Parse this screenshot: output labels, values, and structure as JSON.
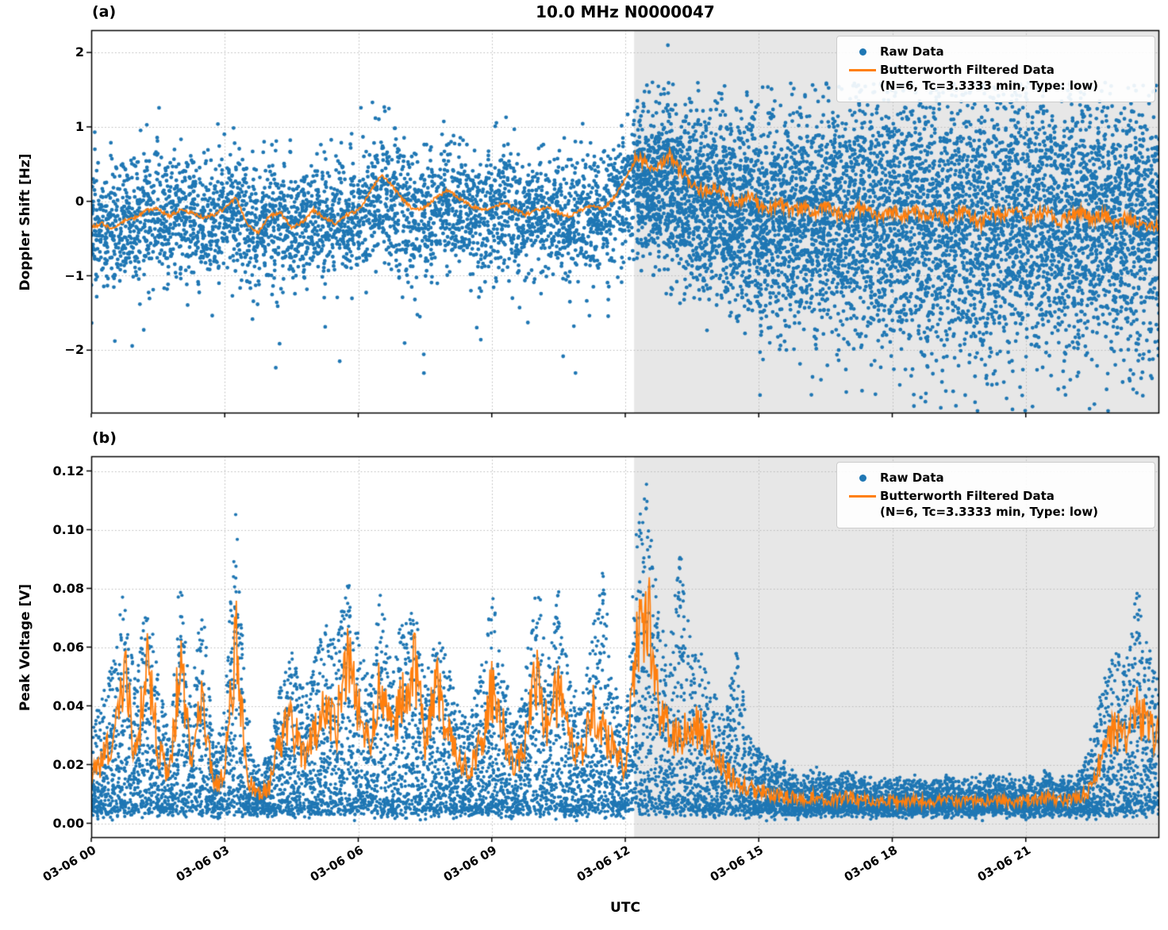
{
  "figure": {
    "title": "10.0 MHz N0000047",
    "xlabel": "UTC",
    "x_tick_labels": [
      "03-06 00",
      "03-06 03",
      "03-06 06",
      "03-06 09",
      "03-06 12",
      "03-06 15",
      "03-06 18",
      "03-06 21"
    ],
    "colors": {
      "raw": "#1f77b4",
      "filtered": "#ff7f0e",
      "shade": "#e7e7e7",
      "grid": "#b8b8b8",
      "spine": "#000000"
    },
    "legend": {
      "raw_label": "Raw Data",
      "filtered_label": "Butterworth Filtered Data",
      "filtered_sublabel": "(N=6, Tc=3.3333 min, Type: low)"
    }
  },
  "chart_data": [
    {
      "type": "scatter",
      "panel": "(a)",
      "title": "10.0 MHz N0000047",
      "ylabel": "Doppler Shift [Hz]",
      "ylim": [
        -2.85,
        2.3
      ],
      "yticks": [
        2,
        1,
        0,
        -1,
        -2
      ],
      "ytick_labels": [
        "2",
        "1",
        "0",
        "−1",
        "−2"
      ],
      "xlim_hours": [
        0,
        24
      ],
      "xtick_hours": [
        0,
        3,
        6,
        9,
        12,
        15,
        18,
        21
      ],
      "xtick_labels": [
        "03-06 00",
        "03-06 03",
        "03-06 06",
        "03-06 09",
        "03-06 12",
        "03-06 15",
        "03-06 18",
        "03-06 21"
      ],
      "shaded_region_hours": [
        12.2,
        24
      ],
      "grid": true,
      "legend_position": "upper right",
      "series": [
        {
          "name": "Raw Data",
          "plot": "scatter",
          "color": "#1f77b4",
          "model": {
            "x_start_hours": 0,
            "x_step_hours": 0.25,
            "center_scale": 0.7,
            "center_offset": -0.12,
            "std": [
              0.42,
              0.42,
              0.42,
              0.42,
              0.42,
              0.42,
              0.42,
              0.42,
              0.42,
              0.42,
              0.42,
              0.42,
              0.42,
              0.42,
              0.42,
              0.42,
              0.42,
              0.42,
              0.42,
              0.42,
              0.42,
              0.42,
              0.42,
              0.42,
              0.42,
              0.42,
              0.42,
              0.42,
              0.42,
              0.42,
              0.42,
              0.42,
              0.42,
              0.42,
              0.42,
              0.42,
              0.42,
              0.42,
              0.42,
              0.42,
              0.42,
              0.42,
              0.42,
              0.42,
              0.42,
              0.42,
              0.42,
              0.42,
              0.42,
              0.48,
              0.52,
              0.55,
              0.58,
              0.6,
              0.62,
              0.63,
              0.65,
              0.66,
              0.68,
              0.69,
              0.7,
              0.72,
              0.73,
              0.74,
              0.75,
              0.77,
              0.78,
              0.79,
              0.8,
              0.82,
              0.83,
              0.84,
              0.85,
              0.86,
              0.87,
              0.88,
              0.9,
              0.9,
              0.9,
              0.9,
              0.9,
              0.9,
              0.9,
              0.9,
              0.9,
              0.89,
              0.88,
              0.87,
              0.86,
              0.85,
              0.84,
              0.83,
              0.82,
              0.81,
              0.8,
              0.79,
              0.78
            ],
            "points_per_bin_unshaded": 75,
            "points_per_bin_shaded": 150
          }
        },
        {
          "name": "Butterworth Filtered Data (N=6, Tc=3.3333 min, Type: low)",
          "plot": "line",
          "color": "#ff7f0e",
          "x_start_hours": 0,
          "x_step_hours": 0.25,
          "wiggle_unshaded": 0.025,
          "wiggle_shaded": 0.085,
          "values": [
            -0.35,
            -0.3,
            -0.38,
            -0.25,
            -0.22,
            -0.12,
            -0.1,
            -0.2,
            -0.12,
            -0.15,
            -0.22,
            -0.18,
            -0.1,
            0.05,
            -0.3,
            -0.42,
            -0.2,
            -0.15,
            -0.35,
            -0.28,
            -0.12,
            -0.22,
            -0.3,
            -0.18,
            -0.12,
            0.1,
            0.35,
            0.22,
            0.02,
            -0.12,
            -0.08,
            0.05,
            0.15,
            0.05,
            -0.05,
            -0.12,
            -0.08,
            -0.02,
            -0.1,
            -0.18,
            -0.12,
            -0.08,
            -0.15,
            -0.2,
            -0.12,
            -0.05,
            -0.1,
            0.05,
            0.3,
            0.58,
            0.52,
            0.45,
            0.62,
            0.4,
            0.25,
            0.12,
            0.18,
            0.05,
            -0.02,
            0.1,
            -0.05,
            -0.12,
            -0.02,
            -0.15,
            -0.08,
            -0.18,
            -0.05,
            -0.15,
            -0.22,
            -0.08,
            -0.15,
            -0.25,
            -0.12,
            -0.2,
            -0.1,
            -0.22,
            -0.15,
            -0.28,
            -0.12,
            -0.2,
            -0.3,
            -0.15,
            -0.22,
            -0.1,
            -0.25,
            -0.18,
            -0.12,
            -0.28,
            -0.2,
            -0.15,
            -0.25,
            -0.18,
            -0.3,
            -0.22,
            -0.28,
            -0.35,
            -0.3
          ]
        }
      ]
    },
    {
      "type": "scatter",
      "panel": "(b)",
      "ylabel": "Peak Voltage [V]",
      "ylim": [
        -0.005,
        0.125
      ],
      "yticks": [
        0.12,
        0.1,
        0.08,
        0.06,
        0.04,
        0.02,
        0.0
      ],
      "ytick_labels": [
        "0.12",
        "0.10",
        "0.08",
        "0.06",
        "0.04",
        "0.02",
        "0.00"
      ],
      "xlim_hours": [
        0,
        24
      ],
      "xtick_hours": [
        0,
        3,
        6,
        9,
        12,
        15,
        18,
        21
      ],
      "xtick_labels": [
        "03-06 00",
        "03-06 03",
        "03-06 06",
        "03-06 09",
        "03-06 12",
        "03-06 15",
        "03-06 18",
        "03-06 21"
      ],
      "shaded_region_hours": [
        12.2,
        24
      ],
      "grid": true,
      "legend_position": "upper right",
      "series": [
        {
          "name": "Raw Data",
          "plot": "scatter",
          "color": "#1f77b4",
          "model": {
            "x_start_hours": 0,
            "x_step_hours": 0.25,
            "base": 0.004,
            "power": 1.9,
            "points_per_bin": 110,
            "peak": [
              0.03,
              0.045,
              0.055,
              0.08,
              0.045,
              0.08,
              0.05,
              0.03,
              0.085,
              0.04,
              0.08,
              0.025,
              0.04,
              0.112,
              0.035,
              0.02,
              0.025,
              0.05,
              0.06,
              0.045,
              0.055,
              0.07,
              0.06,
              0.085,
              0.065,
              0.05,
              0.08,
              0.055,
              0.07,
              0.075,
              0.05,
              0.07,
              0.055,
              0.04,
              0.035,
              0.05,
              0.08,
              0.055,
              0.035,
              0.05,
              0.089,
              0.055,
              0.08,
              0.05,
              0.04,
              0.065,
              0.088,
              0.045,
              0.035,
              0.1,
              0.119,
              0.07,
              0.06,
              0.095,
              0.06,
              0.055,
              0.045,
              0.035,
              0.065,
              0.03,
              0.025,
              0.022,
              0.02,
              0.018,
              0.016,
              0.018,
              0.016,
              0.015,
              0.018,
              0.015,
              0.015,
              0.014,
              0.015,
              0.014,
              0.015,
              0.014,
              0.015,
              0.016,
              0.014,
              0.015,
              0.014,
              0.016,
              0.015,
              0.014,
              0.016,
              0.015,
              0.017,
              0.015,
              0.016,
              0.018,
              0.03,
              0.05,
              0.06,
              0.055,
              0.08,
              0.06,
              0.05
            ]
          }
        },
        {
          "name": "Butterworth Filtered Data (N=6, Tc=3.3333 min, Type: low)",
          "plot": "line",
          "color": "#ff7f0e",
          "x_start_hours": 0,
          "x_step_hours": 0.25,
          "wiggle_frac": 0.5,
          "values": [
            0.015,
            0.022,
            0.03,
            0.055,
            0.02,
            0.058,
            0.025,
            0.015,
            0.056,
            0.018,
            0.045,
            0.012,
            0.018,
            0.063,
            0.015,
            0.01,
            0.012,
            0.028,
            0.035,
            0.022,
            0.03,
            0.042,
            0.032,
            0.056,
            0.038,
            0.028,
            0.05,
            0.03,
            0.042,
            0.055,
            0.028,
            0.048,
            0.032,
            0.022,
            0.018,
            0.028,
            0.045,
            0.032,
            0.018,
            0.028,
            0.05,
            0.032,
            0.045,
            0.028,
            0.022,
            0.04,
            0.032,
            0.025,
            0.018,
            0.058,
            0.075,
            0.038,
            0.032,
            0.028,
            0.035,
            0.03,
            0.025,
            0.018,
            0.014,
            0.012,
            0.011,
            0.01,
            0.009,
            0.009,
            0.008,
            0.009,
            0.008,
            0.008,
            0.009,
            0.008,
            0.008,
            0.007,
            0.008,
            0.007,
            0.008,
            0.007,
            0.008,
            0.008,
            0.007,
            0.008,
            0.007,
            0.008,
            0.008,
            0.007,
            0.008,
            0.008,
            0.009,
            0.008,
            0.008,
            0.009,
            0.012,
            0.025,
            0.032,
            0.028,
            0.04,
            0.032,
            0.028
          ]
        }
      ]
    }
  ]
}
